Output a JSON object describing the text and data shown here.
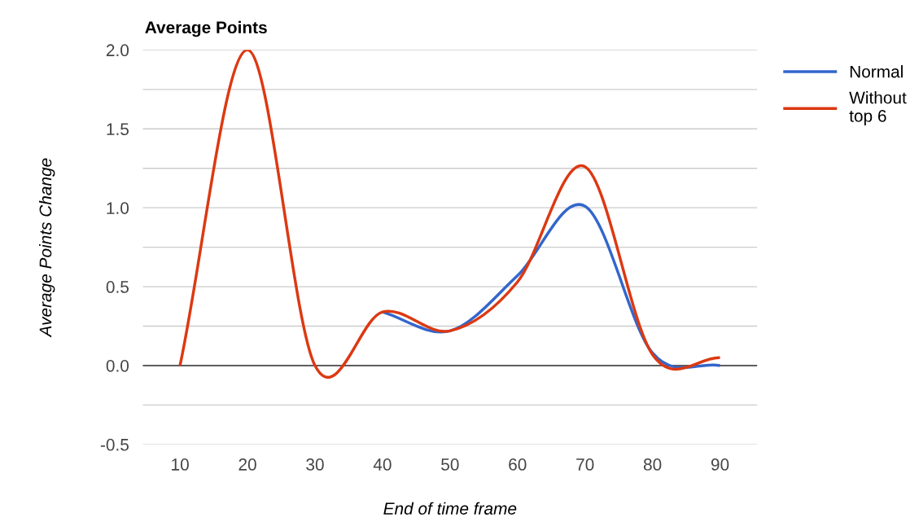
{
  "chart_data": {
    "type": "line",
    "title": "Average Points",
    "xlabel": "End of time frame",
    "ylabel": "Average Points Change",
    "x": [
      10,
      20,
      30,
      40,
      50,
      60,
      70,
      80,
      90
    ],
    "series": [
      {
        "name": "Normal",
        "color": "#3366cc",
        "values": [
          null,
          null,
          null,
          0.34,
          0.22,
          0.57,
          1.01,
          0.08,
          0.0
        ]
      },
      {
        "name": "Without top 6",
        "color": "#dc3912",
        "values": [
          0,
          2.0,
          0.0,
          0.34,
          0.22,
          0.53,
          1.26,
          0.07,
          0.05
        ]
      }
    ],
    "xlim": [
      4.5,
      95.5
    ],
    "xticks": [
      10,
      20,
      30,
      40,
      50,
      60,
      70,
      80,
      90
    ],
    "ylim": [
      -0.5,
      2.0
    ],
    "yticks": [
      -0.5,
      {
        "value": -0.25,
        "label": null
      },
      {
        "value": 0,
        "label": "0.0"
      },
      {
        "value": 0.25,
        "label": null
      },
      0.5,
      {
        "value": 0.75,
        "label": null
      },
      {
        "value": 1,
        "label": "1.0"
      },
      {
        "value": 1.25,
        "label": null
      },
      1.5,
      {
        "value": 1.75,
        "label": null
      },
      {
        "value": 2,
        "label": "2.0"
      }
    ],
    "ref_lines": [
      {
        "axis": "y",
        "value": 0,
        "label": null,
        "color": "#333333"
      }
    ],
    "grid": "y",
    "legend": "top right",
    "marker": "none",
    "line_style": "solid"
  }
}
